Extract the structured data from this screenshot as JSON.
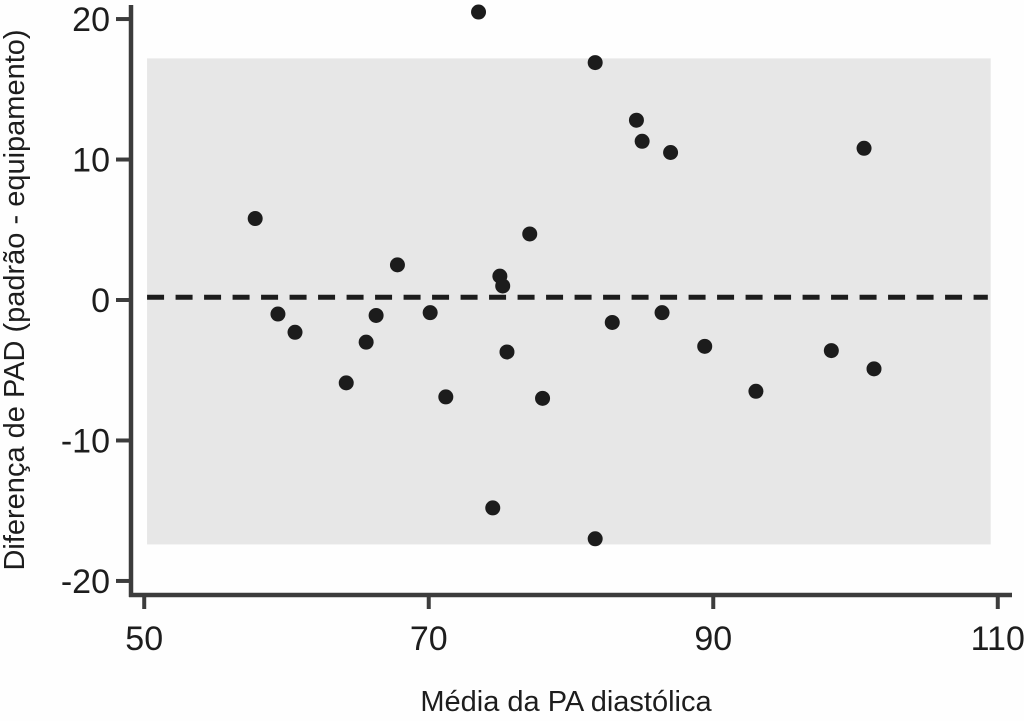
{
  "figure": {
    "x_title": "Média da PA diastólica",
    "y_title": "Diferença de PAD (padrão - equipamento)"
  },
  "colors": {
    "background": "#fefefe",
    "band": "#e7e7e7",
    "axis": "#3c3c3c",
    "point": "#1c1c1c",
    "mean_line": "#1c1c1c",
    "text": "#1d1d1d"
  },
  "chart_data": {
    "type": "scatter",
    "title": "",
    "xlabel": "Média da PA diastólica",
    "ylabel": "Diferença de PAD (padrão - equipamento)",
    "xlim": [
      49,
      111
    ],
    "ylim": [
      -21,
      21
    ],
    "x_ticks": [
      50,
      70,
      90,
      110
    ],
    "y_ticks": [
      -20,
      -10,
      0,
      10,
      20
    ],
    "grid": false,
    "legend": null,
    "mean_line": {
      "value": 0.2,
      "style": "dashed",
      "x_start": 50.2,
      "x_end": 109.3
    },
    "agreement_band": {
      "lower": -17.4,
      "upper": 17.2,
      "x_start": 50.2,
      "x_end": 109.5
    },
    "points": [
      [
        73.5,
        20.5
      ],
      [
        81.7,
        16.9
      ],
      [
        84.6,
        12.8
      ],
      [
        85.0,
        11.3
      ],
      [
        87.0,
        10.5
      ],
      [
        100.6,
        10.8
      ],
      [
        57.8,
        5.8
      ],
      [
        77.1,
        4.7
      ],
      [
        67.8,
        2.5
      ],
      [
        75.0,
        1.7
      ],
      [
        75.2,
        1.0
      ],
      [
        70.1,
        -0.9
      ],
      [
        59.4,
        -1.0
      ],
      [
        66.3,
        -1.1
      ],
      [
        86.4,
        -0.9
      ],
      [
        82.9,
        -1.6
      ],
      [
        60.6,
        -2.3
      ],
      [
        65.6,
        -3.0
      ],
      [
        89.4,
        -3.3
      ],
      [
        75.5,
        -3.7
      ],
      [
        98.3,
        -3.6
      ],
      [
        101.3,
        -4.9
      ],
      [
        64.2,
        -5.9
      ],
      [
        71.2,
        -6.9
      ],
      [
        78.0,
        -7.0
      ],
      [
        93.0,
        -6.5
      ],
      [
        74.5,
        -14.8
      ],
      [
        81.7,
        -17.0
      ]
    ],
    "point_radius_px": 7.5,
    "n_points": 28
  }
}
